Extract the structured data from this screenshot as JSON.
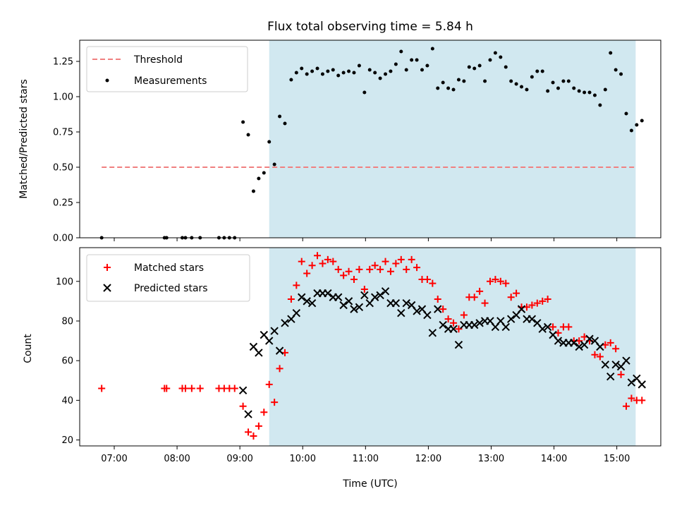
{
  "chart_data": [
    {
      "type": "scatter",
      "title": "Flux total observing time = 5.84 h",
      "xlabel": "",
      "ylabel": "Matched/Predicted stars",
      "xlim": [
        "06:27",
        "15:42"
      ],
      "ylim": [
        0,
        1.4
      ],
      "yticks": [
        "0.00",
        "0.25",
        "0.50",
        "0.75",
        "1.00",
        "1.25"
      ],
      "shaded_region": {
        "x_start": "09:28",
        "x_end": "15:18",
        "color": "#d1e8f0"
      },
      "threshold": {
        "name": "Threshold",
        "y": 0.5,
        "x_start": "06:48",
        "x_end": "15:18",
        "color": "#f08080",
        "style": "dashed"
      },
      "legend": {
        "position": "top-left",
        "entries": [
          "Threshold",
          "Measurements"
        ]
      },
      "series": [
        {
          "name": "Measurements",
          "marker": "dot",
          "color": "#000000",
          "points": [
            [
              "06:48",
              0
            ],
            [
              "07:48",
              0
            ],
            [
              "07:50",
              0
            ],
            [
              "08:05",
              0
            ],
            [
              "08:08",
              0
            ],
            [
              "08:14",
              0
            ],
            [
              "08:22",
              0
            ],
            [
              "08:40",
              0
            ],
            [
              "08:45",
              0
            ],
            [
              "08:50",
              0
            ],
            [
              "08:55",
              0
            ],
            [
              "09:03",
              0.82
            ],
            [
              "09:08",
              0.73
            ],
            [
              "09:13",
              0.33
            ],
            [
              "09:18",
              0.42
            ],
            [
              "09:23",
              0.46
            ],
            [
              "09:28",
              0.68
            ],
            [
              "09:33",
              0.52
            ],
            [
              "09:38",
              0.86
            ],
            [
              "09:43",
              0.81
            ],
            [
              "09:49",
              1.12
            ],
            [
              "09:54",
              1.17
            ],
            [
              "09:59",
              1.2
            ],
            [
              "10:04",
              1.16
            ],
            [
              "10:09",
              1.18
            ],
            [
              "10:14",
              1.2
            ],
            [
              "10:19",
              1.16
            ],
            [
              "10:24",
              1.18
            ],
            [
              "10:29",
              1.19
            ],
            [
              "10:34",
              1.15
            ],
            [
              "10:39",
              1.17
            ],
            [
              "10:44",
              1.18
            ],
            [
              "10:49",
              1.17
            ],
            [
              "10:54",
              1.22
            ],
            [
              "10:59",
              1.03
            ],
            [
              "11:04",
              1.19
            ],
            [
              "11:09",
              1.17
            ],
            [
              "11:14",
              1.13
            ],
            [
              "11:19",
              1.16
            ],
            [
              "11:24",
              1.18
            ],
            [
              "11:29",
              1.23
            ],
            [
              "11:34",
              1.32
            ],
            [
              "11:39",
              1.19
            ],
            [
              "11:44",
              1.26
            ],
            [
              "11:49",
              1.26
            ],
            [
              "11:54",
              1.19
            ],
            [
              "11:59",
              1.22
            ],
            [
              "12:04",
              1.34
            ],
            [
              "12:09",
              1.06
            ],
            [
              "12:14",
              1.1
            ],
            [
              "12:19",
              1.06
            ],
            [
              "12:24",
              1.05
            ],
            [
              "12:29",
              1.12
            ],
            [
              "12:34",
              1.11
            ],
            [
              "12:39",
              1.21
            ],
            [
              "12:44",
              1.2
            ],
            [
              "12:49",
              1.22
            ],
            [
              "12:54",
              1.11
            ],
            [
              "12:59",
              1.26
            ],
            [
              "13:04",
              1.31
            ],
            [
              "13:09",
              1.28
            ],
            [
              "13:14",
              1.21
            ],
            [
              "13:19",
              1.11
            ],
            [
              "13:24",
              1.09
            ],
            [
              "13:29",
              1.07
            ],
            [
              "13:34",
              1.05
            ],
            [
              "13:39",
              1.14
            ],
            [
              "13:44",
              1.18
            ],
            [
              "13:49",
              1.18
            ],
            [
              "13:54",
              1.04
            ],
            [
              "13:59",
              1.1
            ],
            [
              "14:04",
              1.06
            ],
            [
              "14:09",
              1.11
            ],
            [
              "14:14",
              1.11
            ],
            [
              "14:19",
              1.06
            ],
            [
              "14:24",
              1.04
            ],
            [
              "14:29",
              1.03
            ],
            [
              "14:34",
              1.03
            ],
            [
              "14:39",
              1.01
            ],
            [
              "14:44",
              0.94
            ],
            [
              "14:49",
              1.05
            ],
            [
              "14:54",
              1.31
            ],
            [
              "14:59",
              1.19
            ],
            [
              "15:04",
              1.16
            ],
            [
              "15:09",
              0.88
            ],
            [
              "15:14",
              0.76
            ],
            [
              "15:19",
              0.8
            ],
            [
              "15:24",
              0.83
            ]
          ]
        }
      ]
    },
    {
      "type": "scatter",
      "title": "",
      "xlabel": "Time (UTC)",
      "ylabel": "Count",
      "xlim": [
        "06:27",
        "15:42"
      ],
      "ylim": [
        17,
        117
      ],
      "xticks": [
        "07:00",
        "08:00",
        "09:00",
        "10:00",
        "11:00",
        "12:00",
        "13:00",
        "14:00",
        "15:00"
      ],
      "yticks": [
        "20",
        "40",
        "60",
        "80",
        "100"
      ],
      "shaded_region": {
        "x_start": "09:28",
        "x_end": "15:18",
        "color": "#d1e8f0"
      },
      "legend": {
        "position": "top-left",
        "entries": [
          "Matched stars",
          "Predicted stars"
        ]
      },
      "series": [
        {
          "name": "Matched stars",
          "marker": "plus",
          "color": "#ff0000",
          "points": [
            [
              "06:48",
              46
            ],
            [
              "07:48",
              46
            ],
            [
              "07:50",
              46
            ],
            [
              "08:05",
              46
            ],
            [
              "08:08",
              46
            ],
            [
              "08:14",
              46
            ],
            [
              "08:22",
              46
            ],
            [
              "08:40",
              46
            ],
            [
              "08:45",
              46
            ],
            [
              "08:50",
              46
            ],
            [
              "08:55",
              46
            ],
            [
              "09:03",
              37
            ],
            [
              "09:08",
              24
            ],
            [
              "09:13",
              22
            ],
            [
              "09:18",
              27
            ],
            [
              "09:23",
              34
            ],
            [
              "09:28",
              48
            ],
            [
              "09:33",
              39
            ],
            [
              "09:38",
              56
            ],
            [
              "09:43",
              64
            ],
            [
              "09:49",
              91
            ],
            [
              "09:54",
              98
            ],
            [
              "09:59",
              110
            ],
            [
              "10:04",
              104
            ],
            [
              "10:09",
              108
            ],
            [
              "10:14",
              113
            ],
            [
              "10:19",
              109
            ],
            [
              "10:24",
              111
            ],
            [
              "10:29",
              110
            ],
            [
              "10:34",
              106
            ],
            [
              "10:39",
              103
            ],
            [
              "10:44",
              105
            ],
            [
              "10:49",
              101
            ],
            [
              "10:54",
              106
            ],
            [
              "10:59",
              96
            ],
            [
              "11:04",
              106
            ],
            [
              "11:09",
              108
            ],
            [
              "11:14",
              106
            ],
            [
              "11:19",
              110
            ],
            [
              "11:24",
              105
            ],
            [
              "11:29",
              109
            ],
            [
              "11:34",
              111
            ],
            [
              "11:39",
              106
            ],
            [
              "11:44",
              111
            ],
            [
              "11:49",
              107
            ],
            [
              "11:54",
              101
            ],
            [
              "11:59",
              101
            ],
            [
              "12:04",
              99
            ],
            [
              "12:09",
              91
            ],
            [
              "12:14",
              86
            ],
            [
              "12:19",
              81
            ],
            [
              "12:24",
              79
            ],
            [
              "12:29",
              76
            ],
            [
              "12:34",
              83
            ],
            [
              "12:39",
              92
            ],
            [
              "12:44",
              92
            ],
            [
              "12:49",
              95
            ],
            [
              "12:54",
              89
            ],
            [
              "12:59",
              100
            ],
            [
              "13:04",
              101
            ],
            [
              "13:09",
              100
            ],
            [
              "13:14",
              99
            ],
            [
              "13:19",
              92
            ],
            [
              "13:24",
              94
            ],
            [
              "13:29",
              87
            ],
            [
              "13:34",
              87
            ],
            [
              "13:39",
              88
            ],
            [
              "13:44",
              89
            ],
            [
              "13:49",
              90
            ],
            [
              "13:54",
              91
            ],
            [
              "13:59",
              77
            ],
            [
              "14:04",
              74
            ],
            [
              "14:09",
              77
            ],
            [
              "14:14",
              77
            ],
            [
              "14:19",
              70
            ],
            [
              "14:24",
              70
            ],
            [
              "14:29",
              72
            ],
            [
              "14:34",
              70
            ],
            [
              "14:39",
              63
            ],
            [
              "14:44",
              62
            ],
            [
              "14:49",
              68
            ],
            [
              "14:54",
              69
            ],
            [
              "14:59",
              66
            ],
            [
              "15:04",
              53
            ],
            [
              "15:09",
              37
            ],
            [
              "15:14",
              41
            ],
            [
              "15:19",
              40
            ],
            [
              "15:24",
              40
            ]
          ]
        },
        {
          "name": "Predicted stars",
          "marker": "x",
          "color": "#000000",
          "points": [
            [
              "09:03",
              45
            ],
            [
              "09:08",
              33
            ],
            [
              "09:13",
              67
            ],
            [
              "09:18",
              64
            ],
            [
              "09:23",
              73
            ],
            [
              "09:28",
              70
            ],
            [
              "09:33",
              75
            ],
            [
              "09:38",
              65
            ],
            [
              "09:43",
              79
            ],
            [
              "09:49",
              81
            ],
            [
              "09:54",
              84
            ],
            [
              "09:59",
              92
            ],
            [
              "10:04",
              90
            ],
            [
              "10:09",
              89
            ],
            [
              "10:14",
              94
            ],
            [
              "10:19",
              94
            ],
            [
              "10:24",
              94
            ],
            [
              "10:29",
              92
            ],
            [
              "10:34",
              92
            ],
            [
              "10:39",
              88
            ],
            [
              "10:44",
              90
            ],
            [
              "10:49",
              86
            ],
            [
              "10:54",
              87
            ],
            [
              "10:59",
              93
            ],
            [
              "11:04",
              89
            ],
            [
              "11:09",
              92
            ],
            [
              "11:14",
              93
            ],
            [
              "11:19",
              95
            ],
            [
              "11:24",
              89
            ],
            [
              "11:29",
              89
            ],
            [
              "11:34",
              84
            ],
            [
              "11:39",
              89
            ],
            [
              "11:44",
              88
            ],
            [
              "11:49",
              85
            ],
            [
              "11:54",
              86
            ],
            [
              "11:59",
              83
            ],
            [
              "12:04",
              74
            ],
            [
              "12:09",
              86
            ],
            [
              "12:14",
              78
            ],
            [
              "12:19",
              76
            ],
            [
              "12:24",
              76
            ],
            [
              "12:29",
              68
            ],
            [
              "12:34",
              78
            ],
            [
              "12:39",
              78
            ],
            [
              "12:44",
              78
            ],
            [
              "12:49",
              79
            ],
            [
              "12:54",
              80
            ],
            [
              "12:59",
              80
            ],
            [
              "13:04",
              77
            ],
            [
              "13:09",
              80
            ],
            [
              "13:14",
              77
            ],
            [
              "13:19",
              81
            ],
            [
              "13:24",
              83
            ],
            [
              "13:29",
              86
            ],
            [
              "13:34",
              81
            ],
            [
              "13:39",
              81
            ],
            [
              "13:44",
              79
            ],
            [
              "13:49",
              76
            ],
            [
              "13:54",
              77
            ],
            [
              "13:59",
              73
            ],
            [
              "14:04",
              70
            ],
            [
              "14:09",
              69
            ],
            [
              "14:14",
              69
            ],
            [
              "14:19",
              69
            ],
            [
              "14:24",
              67
            ],
            [
              "14:29",
              68
            ],
            [
              "14:34",
              71
            ],
            [
              "14:39",
              70
            ],
            [
              "14:44",
              67
            ],
            [
              "14:49",
              58
            ],
            [
              "14:54",
              52
            ],
            [
              "14:59",
              58
            ],
            [
              "15:04",
              57
            ],
            [
              "15:09",
              60
            ],
            [
              "15:14",
              49
            ],
            [
              "15:19",
              51
            ],
            [
              "15:24",
              48
            ]
          ]
        }
      ]
    }
  ]
}
